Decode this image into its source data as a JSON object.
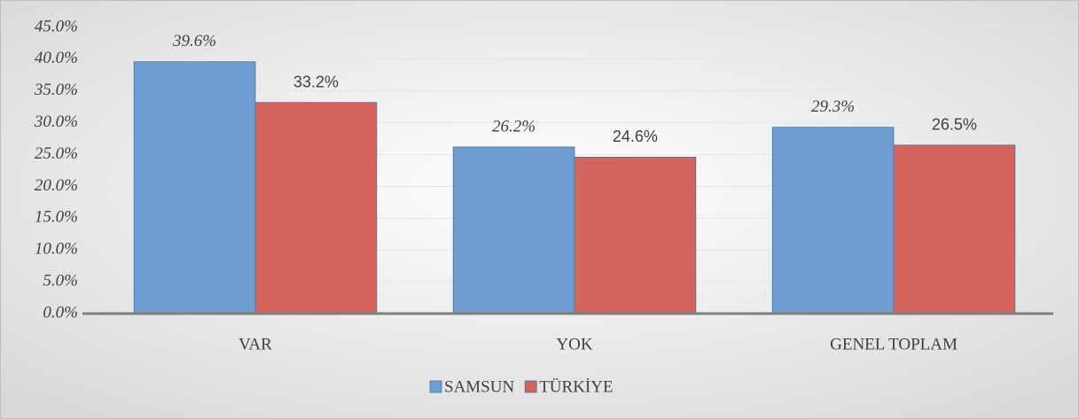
{
  "chart_data": {
    "type": "bar",
    "categories": [
      "VAR",
      "YOK",
      "GENEL TOPLAM"
    ],
    "series": [
      {
        "name": "SAMSUN",
        "color": "#6f9fd2",
        "values": [
          39.6,
          26.2,
          29.3
        ],
        "value_labels": [
          "39.6%",
          "26.2%",
          "29.3%"
        ]
      },
      {
        "name": "TÜRKİYE",
        "color": "#d4645e",
        "values": [
          33.2,
          24.6,
          26.5
        ],
        "value_labels": [
          "33.2%",
          "24.6%",
          "26.5%"
        ]
      }
    ],
    "ylim": [
      0,
      45
    ],
    "yticks": [
      {
        "value": 0,
        "label": "0.0%"
      },
      {
        "value": 5,
        "label": "5.0%"
      },
      {
        "value": 10,
        "label": "10.0%"
      },
      {
        "value": 15,
        "label": "15.0%"
      },
      {
        "value": 20,
        "label": "20.0%"
      },
      {
        "value": 25,
        "label": "25.0%"
      },
      {
        "value": 30,
        "label": "30.0%"
      },
      {
        "value": 35,
        "label": "35.0%"
      },
      {
        "value": 40,
        "label": "40.0%"
      },
      {
        "value": 45,
        "label": "45.0%"
      }
    ],
    "grid": true,
    "legend": "bottom"
  }
}
